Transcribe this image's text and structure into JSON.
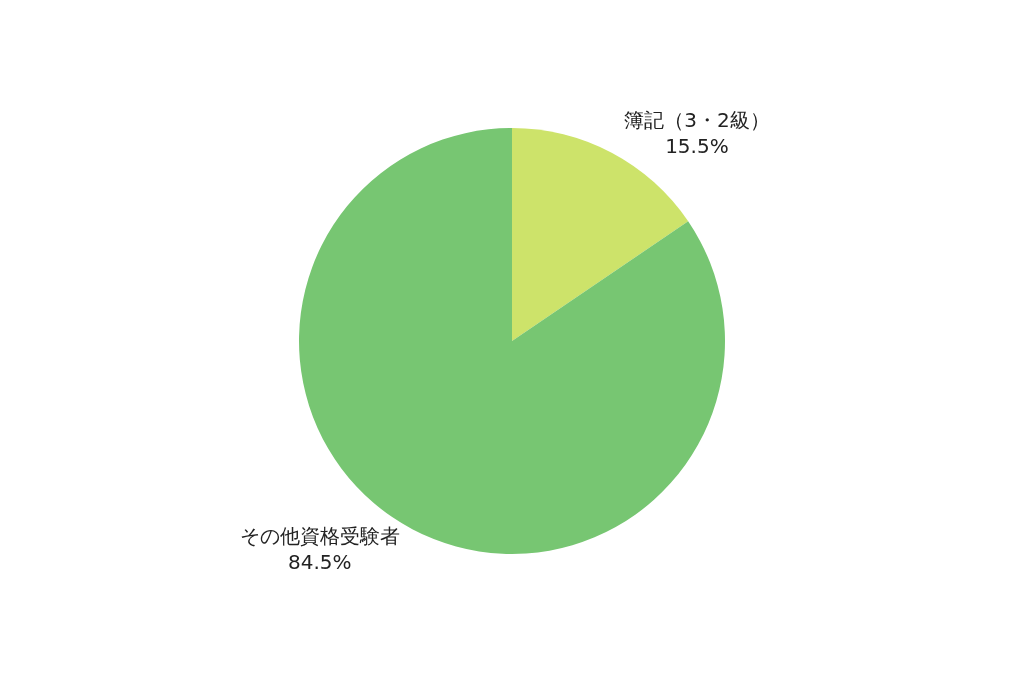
{
  "chart_data": {
    "type": "pie",
    "categories": [
      "簿記（3・2級）",
      "その他資格受験者"
    ],
    "values": [
      15.5,
      84.5
    ],
    "value_labels": [
      "15.5%",
      "84.5%"
    ],
    "colors": [
      "#cde36a",
      "#77c672"
    ],
    "legend": false
  }
}
